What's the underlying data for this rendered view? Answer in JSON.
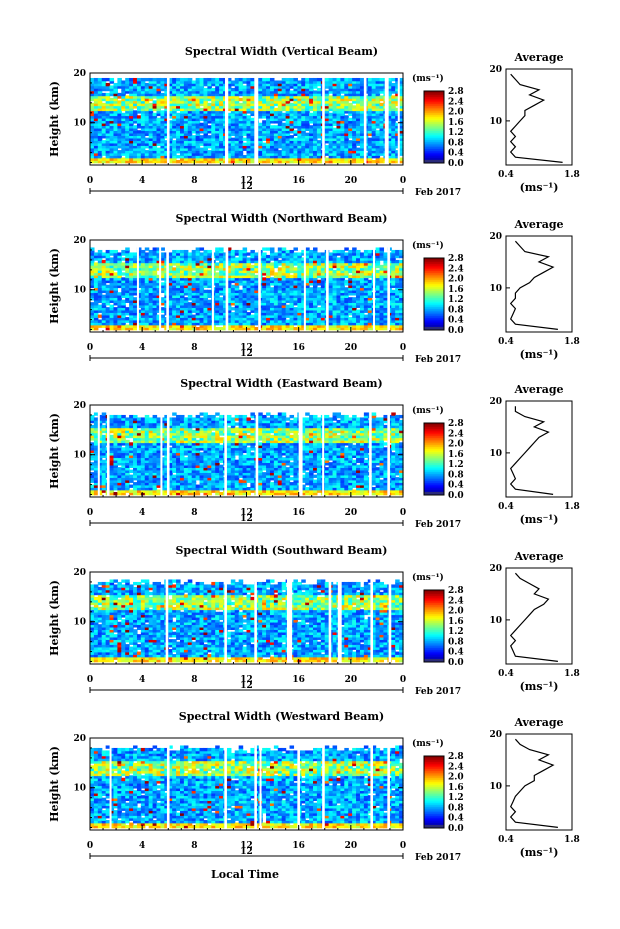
{
  "figure": {
    "xlabel": "Local Time",
    "date_label": "Feb 2017",
    "day_label": "12"
  },
  "chart_data": [
    {
      "type": "heatmap",
      "title": "Spectral Width (Vertical Beam)",
      "xlabel": "Local Time",
      "ylabel": "Height (km)",
      "xlim": [
        0,
        24
      ],
      "ylim": [
        1.5,
        20
      ],
      "xticks": [
        "0",
        "4",
        "8",
        "12",
        "16",
        "20",
        "0"
      ],
      "yticks": [
        "10",
        "20"
      ],
      "colorbar": {
        "label": "(ms⁻¹)",
        "range": [
          0,
          2.8
        ],
        "ticks": [
          "2.8",
          "2.4",
          "2.0",
          "1.6",
          "1.2",
          "0.8",
          "0.4",
          "0.0"
        ]
      },
      "average": {
        "title": "Average",
        "xlim": [
          0.4,
          1.8
        ],
        "xticks": [
          "0.4",
          "1.8"
        ],
        "xlabel": "(ms⁻¹)",
        "yticks": [
          "10",
          "20"
        ],
        "heights": [
          2,
          3,
          4,
          5,
          6,
          7,
          8,
          9,
          10,
          11,
          12,
          13,
          14,
          15,
          16,
          17,
          18,
          19
        ],
        "values": [
          1.6,
          0.6,
          0.5,
          0.6,
          0.5,
          0.6,
          0.5,
          0.6,
          0.7,
          0.8,
          0.8,
          1.0,
          1.2,
          0.9,
          1.1,
          0.7,
          0.6,
          0.5
        ]
      }
    },
    {
      "type": "heatmap",
      "title": "Spectral Width (Northward Beam)",
      "xlabel": "Local Time",
      "ylabel": "Height (km)",
      "xlim": [
        0,
        24
      ],
      "ylim": [
        1.5,
        20
      ],
      "xticks": [
        "0",
        "4",
        "8",
        "12",
        "16",
        "20",
        "0"
      ],
      "yticks": [
        "10",
        "20"
      ],
      "colorbar": {
        "label": "(ms⁻¹)",
        "range": [
          0,
          2.8
        ],
        "ticks": [
          "2.8",
          "2.4",
          "2.0",
          "1.6",
          "1.2",
          "0.8",
          "0.4",
          "0.0"
        ]
      },
      "average": {
        "title": "Average",
        "xlim": [
          0.4,
          1.8
        ],
        "xticks": [
          "0.4",
          "1.8"
        ],
        "xlabel": "(ms⁻¹)",
        "yticks": [
          "10",
          "20"
        ],
        "heights": [
          2,
          3,
          4,
          5,
          6,
          7,
          8,
          9,
          10,
          11,
          12,
          13,
          14,
          15,
          16,
          17,
          18,
          19
        ],
        "values": [
          1.5,
          0.6,
          0.5,
          0.55,
          0.6,
          0.5,
          0.6,
          0.6,
          0.7,
          0.9,
          1.0,
          1.2,
          1.4,
          1.1,
          1.3,
          0.8,
          0.7,
          0.6
        ]
      }
    },
    {
      "type": "heatmap",
      "title": "Spectral Width (Eastward Beam)",
      "xlabel": "Local Time",
      "ylabel": "Height (km)",
      "xlim": [
        0,
        24
      ],
      "ylim": [
        1.5,
        20
      ],
      "xticks": [
        "0",
        "4",
        "8",
        "12",
        "16",
        "20",
        "0"
      ],
      "yticks": [
        "10",
        "20"
      ],
      "colorbar": {
        "label": "(ms⁻¹)",
        "range": [
          0,
          2.8
        ],
        "ticks": [
          "2.8",
          "2.4",
          "2.0",
          "1.6",
          "1.2",
          "0.8",
          "0.4",
          "0.0"
        ]
      },
      "average": {
        "title": "Average",
        "xlim": [
          0.4,
          1.8
        ],
        "xticks": [
          "0.4",
          "1.8"
        ],
        "xlabel": "(ms⁻¹)",
        "yticks": [
          "10",
          "20"
        ],
        "heights": [
          2,
          3,
          4,
          5,
          6,
          7,
          8,
          9,
          10,
          11,
          12,
          13,
          14,
          15,
          16,
          17,
          18,
          19
        ],
        "values": [
          1.4,
          0.6,
          0.5,
          0.6,
          0.55,
          0.5,
          0.6,
          0.7,
          0.8,
          0.9,
          1.0,
          1.1,
          1.3,
          1.0,
          1.2,
          0.8,
          0.6,
          0.6
        ]
      }
    },
    {
      "type": "heatmap",
      "title": "Spectral Width (Southward Beam)",
      "xlabel": "Local Time",
      "ylabel": "Height (km)",
      "xlim": [
        0,
        24
      ],
      "ylim": [
        1.5,
        20
      ],
      "xticks": [
        "0",
        "4",
        "8",
        "12",
        "16",
        "20",
        "0"
      ],
      "yticks": [
        "10",
        "20"
      ],
      "colorbar": {
        "label": "(ms⁻¹)",
        "range": [
          0,
          2.8
        ],
        "ticks": [
          "2.8",
          "2.4",
          "2.0",
          "1.6",
          "1.2",
          "0.8",
          "0.4",
          "0.0"
        ]
      },
      "average": {
        "title": "Average",
        "xlim": [
          0.4,
          1.8
        ],
        "xticks": [
          "0.4",
          "1.8"
        ],
        "xlabel": "(ms⁻¹)",
        "yticks": [
          "10",
          "20"
        ],
        "heights": [
          2,
          3,
          4,
          5,
          6,
          7,
          8,
          9,
          10,
          11,
          12,
          13,
          14,
          15,
          16,
          17,
          18,
          19
        ],
        "values": [
          1.5,
          0.6,
          0.55,
          0.5,
          0.6,
          0.5,
          0.6,
          0.7,
          0.8,
          0.9,
          1.0,
          1.2,
          1.3,
          1.0,
          1.1,
          0.9,
          0.7,
          0.6
        ]
      }
    },
    {
      "type": "heatmap",
      "title": "Spectral Width (Westward Beam)",
      "xlabel": "Local Time",
      "ylabel": "Height (km)",
      "xlim": [
        0,
        24
      ],
      "ylim": [
        1.5,
        20
      ],
      "xticks": [
        "0",
        "4",
        "8",
        "12",
        "16",
        "20",
        "0"
      ],
      "yticks": [
        "10",
        "20"
      ],
      "colorbar": {
        "label": "(ms⁻¹)",
        "range": [
          0,
          2.8
        ],
        "ticks": [
          "2.8",
          "2.4",
          "2.0",
          "1.6",
          "1.2",
          "0.8",
          "0.4",
          "0.0"
        ]
      },
      "average": {
        "title": "Average",
        "xlim": [
          0.4,
          1.8
        ],
        "xticks": [
          "0.4",
          "1.8"
        ],
        "xlabel": "(ms⁻¹)",
        "yticks": [
          "10",
          "20"
        ],
        "heights": [
          2,
          3,
          4,
          5,
          6,
          7,
          8,
          9,
          10,
          11,
          12,
          13,
          14,
          15,
          16,
          17,
          18,
          19
        ],
        "values": [
          1.5,
          0.6,
          0.5,
          0.6,
          0.5,
          0.55,
          0.6,
          0.7,
          0.8,
          1.0,
          1.0,
          1.2,
          1.4,
          1.1,
          1.3,
          0.9,
          0.7,
          0.6
        ]
      }
    }
  ]
}
